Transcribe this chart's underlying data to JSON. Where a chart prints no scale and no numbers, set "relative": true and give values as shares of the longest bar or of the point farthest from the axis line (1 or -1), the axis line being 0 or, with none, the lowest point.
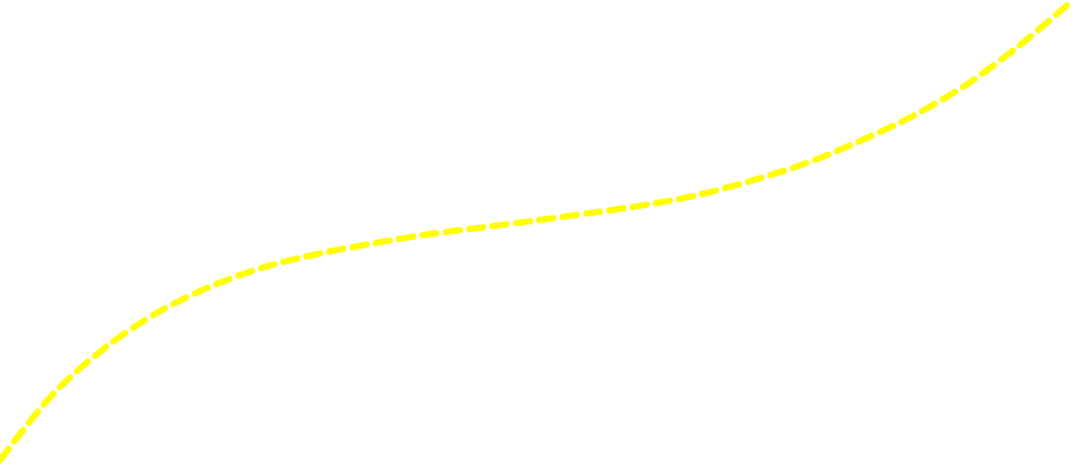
{
  "chart_data": {
    "type": "line",
    "relative": true,
    "categories": [
      null,
      null,
      null,
      null,
      null,
      null,
      null,
      null,
      null,
      null,
      null,
      null,
      null,
      null,
      null,
      null,
      null,
      null,
      null,
      null,
      null
    ],
    "series": [
      {
        "color": "#ffff00",
        "values": [
          0,
          0.145,
          0.248,
          0.325,
          0.381,
          0.422,
          0.45,
          0.472,
          0.491,
          0.506,
          0.521,
          0.537,
          0.554,
          0.576,
          0.607,
          0.644,
          0.692,
          0.747,
          0.815,
          0.901,
          1
        ]
      }
    ],
    "line_style": "dashed",
    "marker": "none",
    "tick_labels": false
  }
}
